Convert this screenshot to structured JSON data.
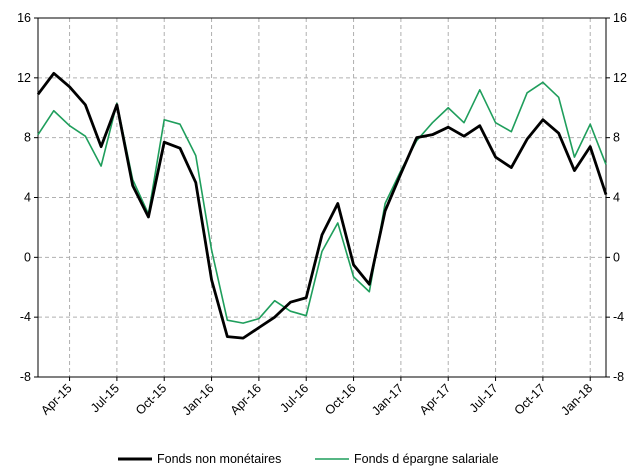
{
  "chart_data": {
    "type": "line",
    "x": [
      "Feb-15",
      "Mar-15",
      "Apr-15",
      "May-15",
      "Jun-15",
      "Jul-15",
      "Aug-15",
      "Sep-15",
      "Oct-15",
      "Nov-15",
      "Dec-15",
      "Jan-16",
      "Feb-16",
      "Mar-16",
      "Apr-16",
      "May-16",
      "Jun-16",
      "Jul-16",
      "Aug-16",
      "Sep-16",
      "Oct-16",
      "Nov-16",
      "Dec-16",
      "Jan-17",
      "Feb-17",
      "Mar-17",
      "Apr-17",
      "May-17",
      "Jun-17",
      "Jul-17",
      "Aug-17",
      "Sep-17",
      "Oct-17",
      "Nov-17",
      "Dec-17",
      "Jan-18",
      "Feb-18"
    ],
    "x_tick_labels": [
      "Apr-15",
      "Jul-15",
      "Oct-15",
      "Jan-16",
      "Apr-16",
      "Jul-16",
      "Oct-16",
      "Jan-17",
      "Apr-17",
      "Jul-17",
      "Oct-17",
      "Jan-18"
    ],
    "x_tick_indices": [
      2,
      5,
      8,
      11,
      14,
      17,
      20,
      23,
      26,
      29,
      32,
      35
    ],
    "ylim": [
      -8,
      16
    ],
    "y_ticks": [
      -8,
      -4,
      0,
      4,
      8,
      12,
      16
    ],
    "y_tick_labels": [
      "-8",
      "-4",
      "0",
      "4",
      "8",
      "12",
      "16"
    ],
    "grid": true,
    "legend_position": "bottom",
    "series": [
      {
        "name": "Fonds non monétaires",
        "color": "#000000",
        "values": [
          10.9,
          12.3,
          11.4,
          10.2,
          7.4,
          10.2,
          4.8,
          2.7,
          7.7,
          7.3,
          5.0,
          -1.5,
          -5.3,
          -5.4,
          -4.7,
          -4.0,
          -3.0,
          -2.7,
          1.5,
          3.6,
          -0.5,
          -1.8,
          3.1,
          5.6,
          8.0,
          8.2,
          8.7,
          8.1,
          8.8,
          6.7,
          6.0,
          7.9,
          9.2,
          8.3,
          5.8,
          7.4,
          4.2
        ]
      },
      {
        "name": "Fonds d épargne salariale",
        "color": "#1f9e5c",
        "values": [
          8.2,
          9.8,
          8.8,
          8.1,
          6.1,
          10.3,
          5.2,
          2.9,
          9.2,
          8.9,
          6.8,
          0.5,
          -4.2,
          -4.4,
          -4.1,
          -2.9,
          -3.6,
          -3.9,
          0.4,
          2.3,
          -1.3,
          -2.3,
          3.6,
          5.8,
          7.8,
          9.0,
          10.0,
          9.0,
          11.2,
          9.0,
          8.4,
          11.0,
          11.7,
          10.7,
          6.7,
          8.9,
          6.2
        ]
      }
    ]
  }
}
